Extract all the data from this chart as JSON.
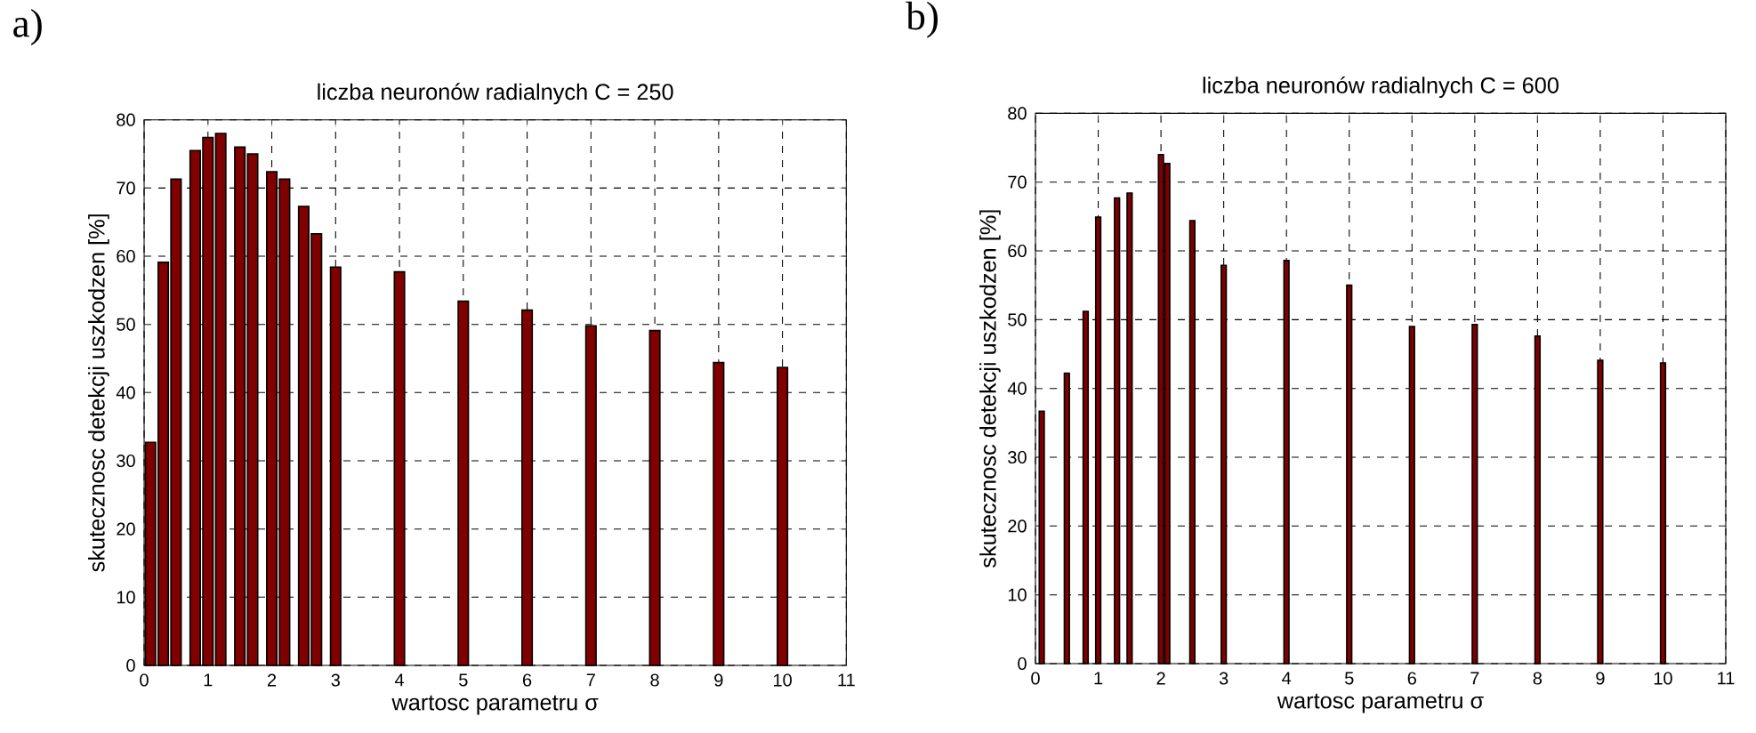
{
  "chart_data": [
    {
      "type": "bar",
      "title": "liczba neuronów radialnych C = 250",
      "xlabel": "wartosc parametru σ",
      "ylabel": "skutecznosc detekcji uszkodzen [%]",
      "annotations": [
        "a)"
      ],
      "color": "#800000",
      "grid": true,
      "x": [
        0.1,
        0.3,
        0.5,
        0.8,
        1.0,
        1.2,
        1.5,
        1.7,
        2.0,
        2.2,
        2.5,
        2.7,
        3,
        4,
        5,
        6,
        7,
        8,
        9,
        10
      ],
      "values": [
        32.7,
        59.1,
        71.3,
        75.5,
        77.4,
        78.0,
        76.0,
        75.0,
        72.4,
        71.3,
        67.3,
        63.3,
        58.4,
        57.7,
        53.4,
        52.1,
        49.8,
        49.1,
        44.4,
        43.7
      ],
      "xlim": [
        0,
        11
      ],
      "ylim": [
        0,
        80
      ],
      "xticks": [
        0,
        1,
        2,
        3,
        4,
        5,
        6,
        7,
        8,
        9,
        10,
        11
      ],
      "yticks": [
        0,
        10,
        20,
        30,
        40,
        50,
        60,
        70,
        80
      ]
    },
    {
      "type": "bar",
      "title": "liczba neuronów radialnych C = 600",
      "xlabel": "wartosc parametru σ",
      "ylabel": "skutecznosc detekcji uszkodzen [%]",
      "annotations": [
        "b)"
      ],
      "color": "#800000",
      "grid": true,
      "x": [
        0.1,
        0.5,
        0.8,
        1.0,
        1.3,
        1.5,
        2.0,
        2.1,
        2.5,
        3,
        4,
        5,
        6,
        7,
        8,
        9,
        10
      ],
      "values": [
        36.7,
        42.2,
        51.2,
        64.9,
        67.7,
        68.4,
        74.0,
        72.7,
        64.4,
        57.9,
        58.6,
        55.0,
        49.0,
        49.3,
        47.6,
        44.1,
        43.7
      ],
      "xlim": [
        0,
        11
      ],
      "ylim": [
        0,
        80
      ],
      "xticks": [
        0,
        1,
        2,
        3,
        4,
        5,
        6,
        7,
        8,
        9,
        10,
        11
      ],
      "yticks": [
        0,
        10,
        20,
        30,
        40,
        50,
        60,
        70,
        80
      ]
    }
  ]
}
